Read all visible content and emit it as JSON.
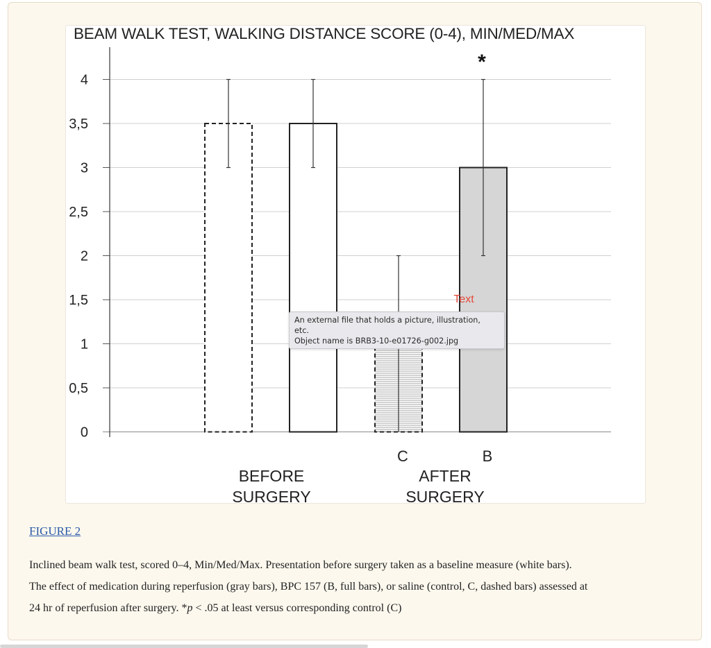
{
  "figure": {
    "image_title": "BEAM WALK TEST, WALKING DISTANCE SCORE (0-4), MIN/MED/MAX",
    "link_label": "FIGURE 2",
    "caption": {
      "line1": "Inclined beam walk test, scored 0–4, Min/Med/Max. Presentation before surgery taken as a baseline measure (white bars).",
      "line2": "The effect of medication during reperfusion (gray bars), BPC 157 (B, full bars), or saline (control, C, dashed bars) assessed at",
      "line3_pre": "24 hr of reperfusion after surgery. *",
      "line3_p": "p",
      "line3_post": " ˂ .05 at least versus corresponding control (C)"
    }
  },
  "tooltip": {
    "line1": "An external file that holds a picture, illustration,",
    "line2": "etc.",
    "line3": "Object name is BRB3-10-e01726-g002.jpg"
  },
  "overlay_text": "Text",
  "chart_data": {
    "type": "bar",
    "title": "BEAM WALK TEST, WALKING DISTANCE SCORE (0-4), MIN/MED/MAX",
    "ylim": [
      0,
      4
    ],
    "yticks": [
      "0",
      "0,5",
      "1",
      "1,5",
      "2",
      "2,5",
      "3",
      "3,5",
      "4"
    ],
    "ytick_values": [
      0,
      0.5,
      1,
      1.5,
      2,
      2.5,
      3,
      3.5,
      4
    ],
    "grid": true,
    "groups": [
      {
        "label_lines": [
          "BEFORE",
          "SURGERY"
        ]
      },
      {
        "label_lines": [
          "AFTER",
          "SURGERY"
        ]
      }
    ],
    "bars": [
      {
        "group": 0,
        "label": "",
        "median": 3.5,
        "min": 3,
        "max": 4,
        "style": "dashed-white",
        "annotation": ""
      },
      {
        "group": 0,
        "label": "",
        "median": 3.5,
        "min": 3,
        "max": 4,
        "style": "solid-white",
        "annotation": ""
      },
      {
        "group": 1,
        "label": "C",
        "median": 1,
        "min": 0,
        "max": 2,
        "style": "dashed-gray",
        "annotation": ""
      },
      {
        "group": 1,
        "label": "B",
        "median": 3,
        "min": 2,
        "max": 4,
        "style": "solid-gray",
        "annotation": "*"
      }
    ],
    "colors": {
      "gray_fill": "#d6d6d6",
      "white_fill": "#ffffff",
      "stroke": "#222222",
      "grid": "#cfcfcf",
      "overlay_text": "#e5483a"
    }
  }
}
